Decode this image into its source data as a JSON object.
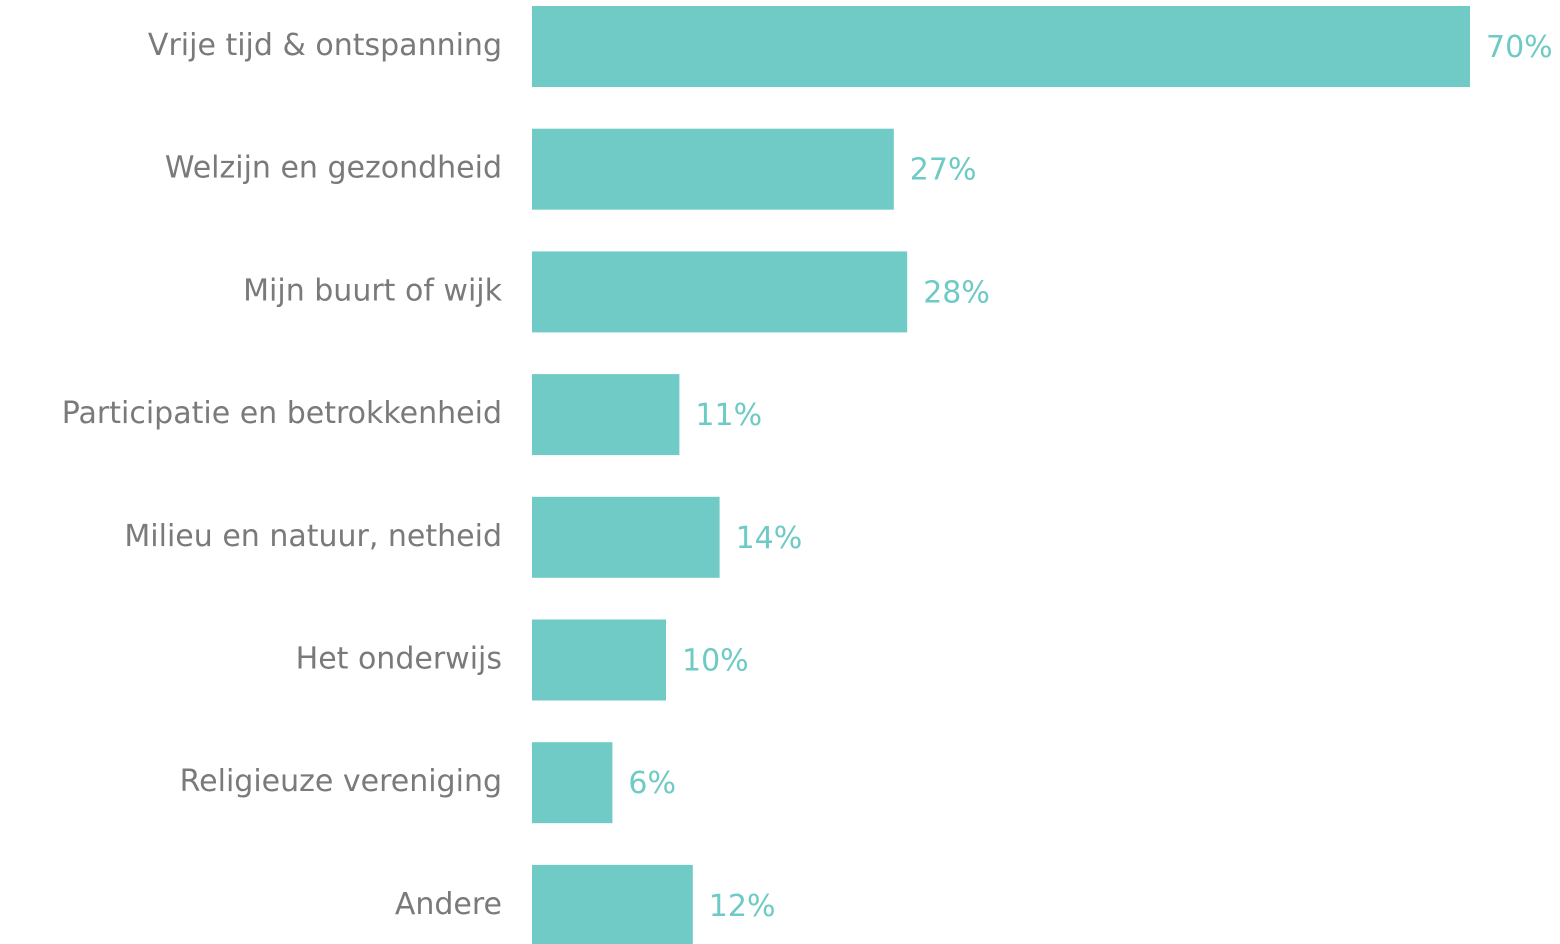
{
  "chart_data": {
    "type": "bar",
    "orientation": "horizontal",
    "categories": [
      "Vrije tijd & ontspanning",
      "Welzijn en gezondheid",
      "Mijn buurt of wijk",
      "Participatie en betrokkenheid",
      "Milieu en natuur, netheid",
      "Het onderwijs",
      "Religieuze vereniging",
      "Andere"
    ],
    "values": [
      70,
      27,
      28,
      11,
      14,
      10,
      6,
      12
    ],
    "value_labels": [
      "70%",
      "27%",
      "28%",
      "11%",
      "14%",
      "10%",
      "6%",
      "12%"
    ],
    "color": "#70cac5"
  }
}
